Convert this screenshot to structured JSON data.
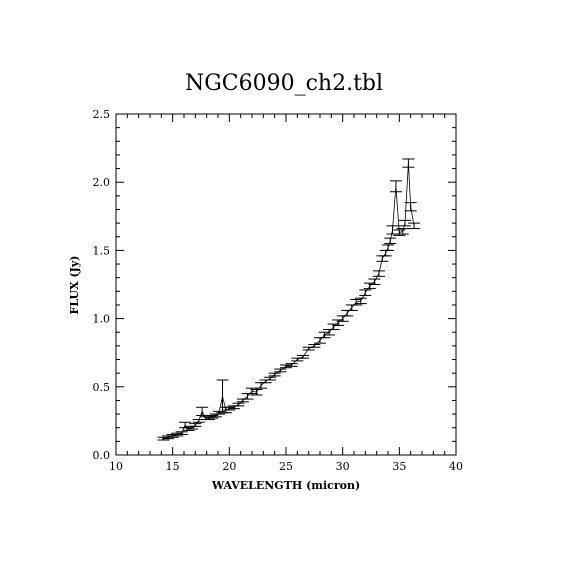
{
  "chart_data": {
    "type": "line",
    "title": "NGC6090_ch2.tbl",
    "xlabel": "WAVELENGTH (micron)",
    "ylabel": "FLUX (Jy)",
    "xlim": [
      10,
      40
    ],
    "ylim": [
      0.0,
      2.5
    ],
    "grid": false,
    "xticks": [
      {
        "v": 10,
        "label": "10"
      },
      {
        "v": 15,
        "label": "15"
      },
      {
        "v": 20,
        "label": "20"
      },
      {
        "v": 25,
        "label": "25"
      },
      {
        "v": 30,
        "label": "30"
      },
      {
        "v": 35,
        "label": "35"
      },
      {
        "v": 40,
        "label": "40"
      }
    ],
    "yticks": [
      {
        "v": 0.0,
        "label": "0.0"
      },
      {
        "v": 0.5,
        "label": "0.5"
      },
      {
        "v": 1.0,
        "label": "1.0"
      },
      {
        "v": 1.5,
        "label": "1.5"
      },
      {
        "v": 2.0,
        "label": "2.0"
      },
      {
        "v": 2.5,
        "label": "2.5"
      }
    ],
    "series": [
      {
        "points": [
          {
            "x": 14.2,
            "y": 0.12,
            "e": 0.01
          },
          {
            "x": 14.6,
            "y": 0.13,
            "e": 0.01
          },
          {
            "x": 15.0,
            "y": 0.14,
            "e": 0.01
          },
          {
            "x": 15.4,
            "y": 0.15,
            "e": 0.01
          },
          {
            "x": 15.8,
            "y": 0.16,
            "e": 0.01
          },
          {
            "x": 16.1,
            "y": 0.22,
            "e": 0.02
          },
          {
            "x": 16.4,
            "y": 0.19,
            "e": 0.01
          },
          {
            "x": 16.7,
            "y": 0.2,
            "e": 0.01
          },
          {
            "x": 17.0,
            "y": 0.22,
            "e": 0.01
          },
          {
            "x": 17.3,
            "y": 0.25,
            "e": 0.01
          },
          {
            "x": 17.6,
            "y": 0.32,
            "e": 0.03
          },
          {
            "x": 17.9,
            "y": 0.27,
            "e": 0.01
          },
          {
            "x": 18.2,
            "y": 0.27,
            "e": 0.01
          },
          {
            "x": 18.5,
            "y": 0.28,
            "e": 0.01
          },
          {
            "x": 18.8,
            "y": 0.29,
            "e": 0.01
          },
          {
            "x": 19.1,
            "y": 0.31,
            "e": 0.01
          },
          {
            "x": 19.4,
            "y": 0.43,
            "e": 0.12
          },
          {
            "x": 19.7,
            "y": 0.33,
            "e": 0.02
          },
          {
            "x": 20.0,
            "y": 0.34,
            "e": 0.01
          },
          {
            "x": 20.4,
            "y": 0.35,
            "e": 0.01
          },
          {
            "x": 20.8,
            "y": 0.37,
            "e": 0.01
          },
          {
            "x": 21.2,
            "y": 0.4,
            "e": 0.01
          },
          {
            "x": 21.6,
            "y": 0.43,
            "e": 0.02
          },
          {
            "x": 22.0,
            "y": 0.47,
            "e": 0.02
          },
          {
            "x": 22.4,
            "y": 0.46,
            "e": 0.02
          },
          {
            "x": 22.8,
            "y": 0.51,
            "e": 0.02
          },
          {
            "x": 23.2,
            "y": 0.54,
            "e": 0.01
          },
          {
            "x": 23.6,
            "y": 0.56,
            "e": 0.01
          },
          {
            "x": 24.0,
            "y": 0.59,
            "e": 0.01
          },
          {
            "x": 24.5,
            "y": 0.62,
            "e": 0.01
          },
          {
            "x": 25.0,
            "y": 0.65,
            "e": 0.01
          },
          {
            "x": 25.5,
            "y": 0.66,
            "e": 0.01
          },
          {
            "x": 26.0,
            "y": 0.7,
            "e": 0.01
          },
          {
            "x": 26.5,
            "y": 0.72,
            "e": 0.01
          },
          {
            "x": 27.0,
            "y": 0.78,
            "e": 0.01
          },
          {
            "x": 27.5,
            "y": 0.8,
            "e": 0.01
          },
          {
            "x": 28.0,
            "y": 0.84,
            "e": 0.02
          },
          {
            "x": 28.4,
            "y": 0.88,
            "e": 0.02
          },
          {
            "x": 28.8,
            "y": 0.9,
            "e": 0.02
          },
          {
            "x": 29.2,
            "y": 0.94,
            "e": 0.02
          },
          {
            "x": 29.6,
            "y": 0.97,
            "e": 0.02
          },
          {
            "x": 30.0,
            "y": 1.0,
            "e": 0.02
          },
          {
            "x": 30.4,
            "y": 1.04,
            "e": 0.02
          },
          {
            "x": 30.8,
            "y": 1.08,
            "e": 0.02
          },
          {
            "x": 31.2,
            "y": 1.12,
            "e": 0.02
          },
          {
            "x": 31.6,
            "y": 1.13,
            "e": 0.02
          },
          {
            "x": 32.0,
            "y": 1.19,
            "e": 0.02
          },
          {
            "x": 32.4,
            "y": 1.24,
            "e": 0.02
          },
          {
            "x": 32.8,
            "y": 1.27,
            "e": 0.02
          },
          {
            "x": 33.2,
            "y": 1.33,
            "e": 0.02
          },
          {
            "x": 33.5,
            "y": 1.44,
            "e": 0.02
          },
          {
            "x": 33.8,
            "y": 1.48,
            "e": 0.02
          },
          {
            "x": 34.0,
            "y": 1.52,
            "e": 0.02
          },
          {
            "x": 34.2,
            "y": 1.57,
            "e": 0.02
          },
          {
            "x": 34.4,
            "y": 1.65,
            "e": 0.03
          },
          {
            "x": 34.7,
            "y": 1.97,
            "e": 0.04
          },
          {
            "x": 35.0,
            "y": 1.63,
            "e": 0.02
          },
          {
            "x": 35.3,
            "y": 1.64,
            "e": 0.02
          },
          {
            "x": 35.5,
            "y": 1.7,
            "e": 0.02
          },
          {
            "x": 35.8,
            "y": 2.14,
            "e": 0.03
          },
          {
            "x": 36.0,
            "y": 1.82,
            "e": 0.03
          },
          {
            "x": 36.3,
            "y": 1.68,
            "e": 0.02
          }
        ]
      }
    ]
  }
}
